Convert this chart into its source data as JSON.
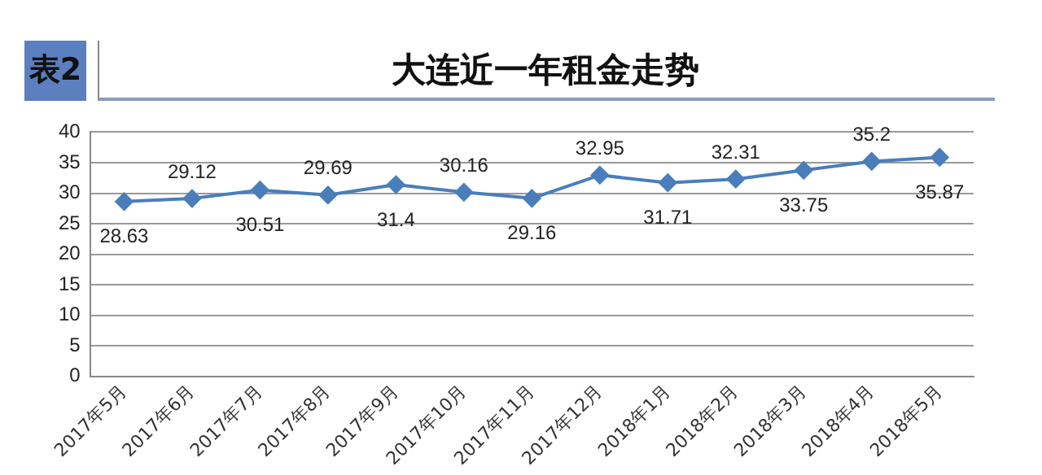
{
  "chart_data": {
    "type": "line",
    "title": "大连近一年租金走势",
    "annotations": [
      "表2"
    ],
    "categories": [
      "2017年5月",
      "2017年6月",
      "2017年7月",
      "2017年8月",
      "2017年9月",
      "2017年10月",
      "2017年11月",
      "2017年12月",
      "2018年1月",
      "2018年2月",
      "2018年3月",
      "2018年4月",
      "2018年5月"
    ],
    "series": [
      {
        "color": "#4a7ebb",
        "values": [
          28.63,
          29.12,
          30.51,
          29.69,
          31.4,
          30.16,
          29.16,
          32.95,
          31.71,
          32.31,
          33.75,
          35.2,
          35.87
        ]
      }
    ],
    "ylim": [
      0,
      40
    ],
    "yticks": [
      0,
      5,
      10,
      15,
      20,
      25,
      30,
      35,
      40
    ],
    "grid": "y",
    "legend": false,
    "marker": "diamond",
    "line_style": "solid",
    "data_labels": true
  }
}
